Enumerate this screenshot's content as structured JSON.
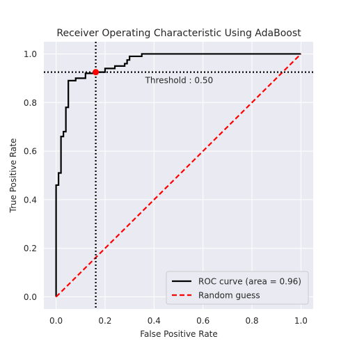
{
  "chart_data": {
    "type": "line",
    "title": "Receiver Operating Characteristic Using AdaBoost",
    "xlabel": "False Positive Rate",
    "ylabel": "True Positive Rate",
    "xlim": [
      -0.05,
      1.05
    ],
    "ylim": [
      -0.05,
      1.05
    ],
    "xticks": [
      "0.0",
      "0.2",
      "0.4",
      "0.6",
      "0.8",
      "1.0"
    ],
    "yticks": [
      "0.0",
      "0.2",
      "0.4",
      "0.6",
      "0.8",
      "1.0"
    ],
    "grid": true,
    "legend_position": "bottom-right",
    "series": [
      {
        "name": "ROC curve (area = 0.96)",
        "color": "#000000",
        "style": "solid",
        "x": [
          0.0,
          0.0,
          0.01,
          0.01,
          0.02,
          0.02,
          0.03,
          0.03,
          0.04,
          0.04,
          0.05,
          0.05,
          0.08,
          0.08,
          0.12,
          0.12,
          0.16,
          0.16,
          0.2,
          0.2,
          0.24,
          0.24,
          0.28,
          0.28,
          0.29,
          0.29,
          0.3,
          0.3,
          0.35,
          0.35,
          1.0
        ],
        "y": [
          0.0,
          0.46,
          0.46,
          0.51,
          0.51,
          0.66,
          0.66,
          0.68,
          0.68,
          0.78,
          0.78,
          0.89,
          0.89,
          0.9,
          0.9,
          0.92,
          0.92,
          0.925,
          0.925,
          0.94,
          0.94,
          0.95,
          0.95,
          0.96,
          0.96,
          0.975,
          0.975,
          0.99,
          0.99,
          1.0,
          1.0
        ]
      },
      {
        "name": "Random guess",
        "color": "#ff0000",
        "style": "dashed",
        "x": [
          0.0,
          1.0
        ],
        "y": [
          0.0,
          1.0
        ]
      }
    ],
    "threshold": {
      "label": "Threshold : 0.50",
      "fpr": 0.162,
      "tpr": 0.925,
      "color": "#ff0000"
    }
  }
}
